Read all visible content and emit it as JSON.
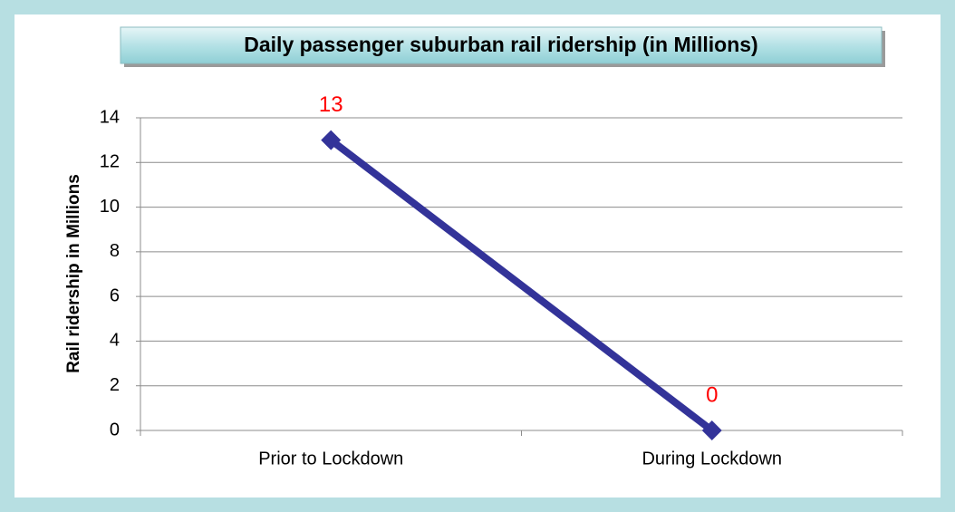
{
  "chart_data": {
    "type": "line",
    "title": "Daily passenger suburban rail ridership  (in Millions)",
    "y_label": "Rail ridership  in Millions",
    "categories": [
      "Prior to Lockdown",
      "During Lockdown"
    ],
    "series": [
      {
        "name": "Rail ridership",
        "color": "#333399",
        "values": [
          13,
          0
        ]
      }
    ],
    "data_label_color": "#ff0000",
    "ylim": [
      0,
      14
    ],
    "yticks": [
      0,
      2,
      4,
      6,
      8,
      10,
      12,
      14
    ],
    "grid": true
  }
}
